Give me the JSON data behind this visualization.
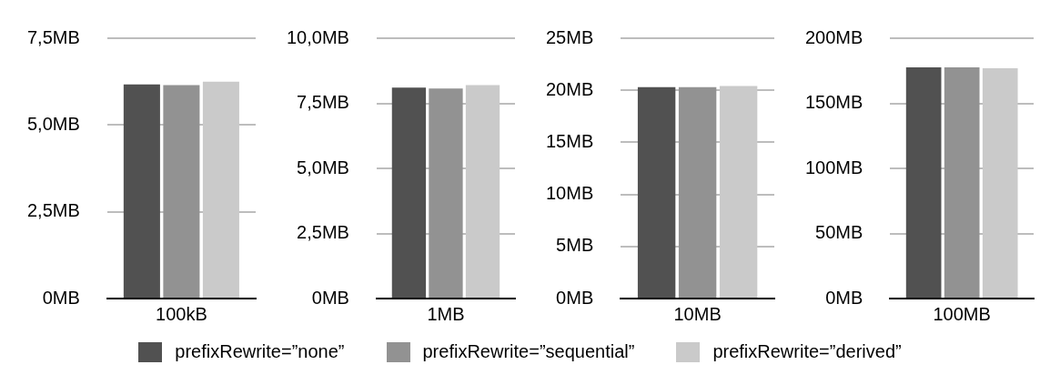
{
  "chart_data": [
    {
      "type": "bar",
      "categories": [
        "100kB"
      ],
      "series": [
        {
          "name": "prefixRewrite=”none”",
          "color": "#515151",
          "values": [
            6.17
          ]
        },
        {
          "name": "prefixRewrite=”sequential”",
          "color": "#929292",
          "values": [
            6.15
          ]
        },
        {
          "name": "prefixRewrite=”derived”",
          "color": "#cacaca",
          "values": [
            6.25
          ]
        }
      ],
      "ylim": [
        0,
        7.5
      ],
      "yticks": [
        {
          "value": 0,
          "label": "0MB"
        },
        {
          "value": 2.5,
          "label": "2,5MB"
        },
        {
          "value": 5,
          "label": "5,0MB"
        },
        {
          "value": 7.5,
          "label": "7,5MB"
        }
      ],
      "grid": "y",
      "legend": "bottom"
    },
    {
      "type": "bar",
      "categories": [
        "1MB"
      ],
      "series": [
        {
          "color": "#515151",
          "values": [
            8.1
          ]
        },
        {
          "color": "#929292",
          "values": [
            8.07
          ]
        },
        {
          "color": "#cacaca",
          "values": [
            8.2
          ]
        }
      ],
      "ylim": [
        0,
        10
      ],
      "yticks": [
        {
          "value": 0,
          "label": "0MB"
        },
        {
          "value": 2.5,
          "label": "2,5MB"
        },
        {
          "value": 5,
          "label": "5,0MB"
        },
        {
          "value": 7.5,
          "label": "7,5MB"
        },
        {
          "value": 10,
          "label": "10,0MB"
        }
      ],
      "grid": "y"
    },
    {
      "type": "bar",
      "categories": [
        "10MB"
      ],
      "series": [
        {
          "color": "#515151",
          "values": [
            20.3
          ]
        },
        {
          "color": "#929292",
          "values": [
            20.3
          ]
        },
        {
          "color": "#cacaca",
          "values": [
            20.4
          ]
        }
      ],
      "ylim": [
        0,
        25
      ],
      "yticks": [
        {
          "value": 0,
          "label": "0MB"
        },
        {
          "value": 5,
          "label": "5MB"
        },
        {
          "value": 10,
          "label": "10MB"
        },
        {
          "value": 15,
          "label": "15MB"
        },
        {
          "value": 20,
          "label": "20MB"
        },
        {
          "value": 25,
          "label": "25MB"
        }
      ],
      "grid": "y"
    },
    {
      "type": "bar",
      "categories": [
        "100MB"
      ],
      "series": [
        {
          "color": "#515151",
          "values": [
            177.6
          ]
        },
        {
          "color": "#929292",
          "values": [
            177.6
          ]
        },
        {
          "color": "#cacaca",
          "values": [
            176.9
          ]
        }
      ],
      "ylim": [
        0,
        200
      ],
      "yticks": [
        {
          "value": 0,
          "label": "0MB"
        },
        {
          "value": 50,
          "label": "50MB"
        },
        {
          "value": 100,
          "label": "100MB"
        },
        {
          "value": 150,
          "label": "150MB"
        },
        {
          "value": 200,
          "label": "200MB"
        }
      ],
      "grid": "y"
    }
  ]
}
